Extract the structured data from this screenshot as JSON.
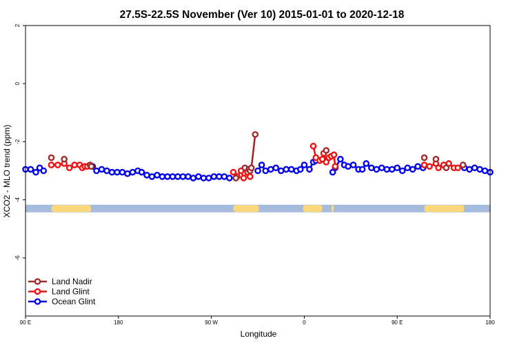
{
  "chart_data": {
    "type": "scatter",
    "title": "27.5S-22.5S November (Ver 10)   2015-01-01 to 2020-12-18",
    "xlabel": "Longitude",
    "ylabel": "XCO2 - MLO trend (ppm)",
    "xlim": [
      90,
      450
    ],
    "ylim": [
      -8.0,
      2.0
    ],
    "x_ticks": [
      {
        "value": 90,
        "label": "90 E"
      },
      {
        "value": 162,
        "label": "180"
      },
      {
        "value": 234,
        "label": "90 W"
      },
      {
        "value": 306,
        "label": "0"
      },
      {
        "value": 378,
        "label": "90 E"
      },
      {
        "value": 450,
        "label": "180"
      }
    ],
    "y_ticks": [
      {
        "value": 2,
        "label": "2"
      },
      {
        "value": 0,
        "label": "0"
      },
      {
        "value": -2,
        "label": "-2"
      },
      {
        "value": -4,
        "label": "-4"
      },
      {
        "value": -6,
        "label": "-6"
      }
    ],
    "legend_position": "bottom-left",
    "land_mask": {
      "y_range": [
        -4.43,
        -4.17
      ],
      "ocean_color": "#a5bbdc",
      "land_color": "#fcd77b",
      "land_segments": [
        [
          110,
          141
        ],
        [
          251,
          271
        ],
        [
          305,
          320
        ],
        [
          327,
          329
        ],
        [
          399,
          430
        ]
      ]
    },
    "series": [
      {
        "name": "Land Nadir",
        "color": "#9e2a2b",
        "points": [
          [
            110,
            -2.55
          ],
          [
            120,
            -2.6
          ],
          [
            140,
            -2.8
          ],
          [
            141,
            -2.85
          ],
          [
            253,
            -3.25
          ],
          [
            260,
            -2.9
          ],
          [
            263,
            -2.95
          ],
          [
            264,
            -3.0
          ],
          [
            265,
            -2.9
          ],
          [
            268,
            -1.75
          ],
          [
            323,
            -2.3
          ],
          [
            399,
            -2.55
          ],
          [
            408,
            -2.6
          ],
          [
            416,
            -2.9
          ],
          [
            429,
            -2.8
          ]
        ]
      },
      {
        "name": "Land Glint",
        "color": "#ee1111",
        "points": [
          [
            110,
            -2.8
          ],
          [
            115,
            -2.8
          ],
          [
            120,
            -2.75
          ],
          [
            124,
            -2.9
          ],
          [
            128,
            -2.8
          ],
          [
            132,
            -2.8
          ],
          [
            134,
            -2.9
          ],
          [
            136,
            -2.85
          ],
          [
            138,
            -2.85
          ],
          [
            251,
            -3.05
          ],
          [
            254,
            -3.2
          ],
          [
            257,
            -3.0
          ],
          [
            259,
            -3.25
          ],
          [
            262,
            -3.05
          ],
          [
            264,
            -3.2
          ],
          [
            313,
            -2.15
          ],
          [
            315,
            -2.55
          ],
          [
            318,
            -2.65
          ],
          [
            320,
            -2.6
          ],
          [
            321,
            -2.4
          ],
          [
            323,
            -2.7
          ],
          [
            325,
            -2.55
          ],
          [
            327,
            -2.5
          ],
          [
            329,
            -2.45
          ],
          [
            330,
            -2.85
          ],
          [
            399,
            -2.8
          ],
          [
            403,
            -2.85
          ],
          [
            408,
            -2.75
          ],
          [
            410,
            -2.9
          ],
          [
            414,
            -2.8
          ],
          [
            418,
            -2.75
          ],
          [
            422,
            -2.9
          ],
          [
            425,
            -2.9
          ]
        ]
      },
      {
        "name": "Ocean Glint",
        "color": "#0000ee",
        "points": [
          [
            90,
            -2.95
          ],
          [
            94,
            -2.95
          ],
          [
            98,
            -3.05
          ],
          [
            101,
            -2.9
          ],
          [
            104,
            -3.0
          ],
          [
            142,
            -2.85
          ],
          [
            145,
            -3.0
          ],
          [
            149,
            -2.95
          ],
          [
            153,
            -3.0
          ],
          [
            157,
            -3.05
          ],
          [
            161,
            -3.05
          ],
          [
            165,
            -3.05
          ],
          [
            169,
            -3.1
          ],
          [
            173,
            -3.05
          ],
          [
            177,
            -3.0
          ],
          [
            180,
            -3.05
          ],
          [
            184,
            -3.15
          ],
          [
            188,
            -3.2
          ],
          [
            192,
            -3.15
          ],
          [
            196,
            -3.2
          ],
          [
            200,
            -3.2
          ],
          [
            204,
            -3.2
          ],
          [
            208,
            -3.2
          ],
          [
            212,
            -3.2
          ],
          [
            216,
            -3.2
          ],
          [
            220,
            -3.25
          ],
          [
            224,
            -3.2
          ],
          [
            228,
            -3.25
          ],
          [
            232,
            -3.25
          ],
          [
            236,
            -3.2
          ],
          [
            240,
            -3.2
          ],
          [
            244,
            -3.2
          ],
          [
            248,
            -3.25
          ],
          [
            270,
            -3.0
          ],
          [
            273,
            -2.8
          ],
          [
            276,
            -3.0
          ],
          [
            280,
            -2.95
          ],
          [
            284,
            -2.9
          ],
          [
            288,
            -3.0
          ],
          [
            292,
            -2.95
          ],
          [
            296,
            -2.95
          ],
          [
            300,
            -3.0
          ],
          [
            303,
            -2.95
          ],
          [
            306,
            -2.8
          ],
          [
            310,
            -2.95
          ],
          [
            313,
            -2.7
          ],
          [
            315,
            -2.65
          ],
          [
            328,
            -3.05
          ],
          [
            330,
            -2.9
          ],
          [
            334,
            -2.6
          ],
          [
            337,
            -2.8
          ],
          [
            340,
            -2.85
          ],
          [
            344,
            -2.8
          ],
          [
            348,
            -2.95
          ],
          [
            351,
            -2.95
          ],
          [
            354,
            -2.75
          ],
          [
            358,
            -2.9
          ],
          [
            362,
            -2.95
          ],
          [
            366,
            -2.9
          ],
          [
            370,
            -2.95
          ],
          [
            374,
            -2.95
          ],
          [
            378,
            -2.9
          ],
          [
            382,
            -3.0
          ],
          [
            386,
            -2.9
          ],
          [
            390,
            -2.95
          ],
          [
            394,
            -2.85
          ],
          [
            398,
            -2.9
          ],
          [
            430,
            -2.9
          ],
          [
            434,
            -2.95
          ],
          [
            438,
            -2.9
          ],
          [
            442,
            -2.95
          ],
          [
            446,
            -3.0
          ],
          [
            450,
            -3.05
          ]
        ]
      }
    ]
  }
}
